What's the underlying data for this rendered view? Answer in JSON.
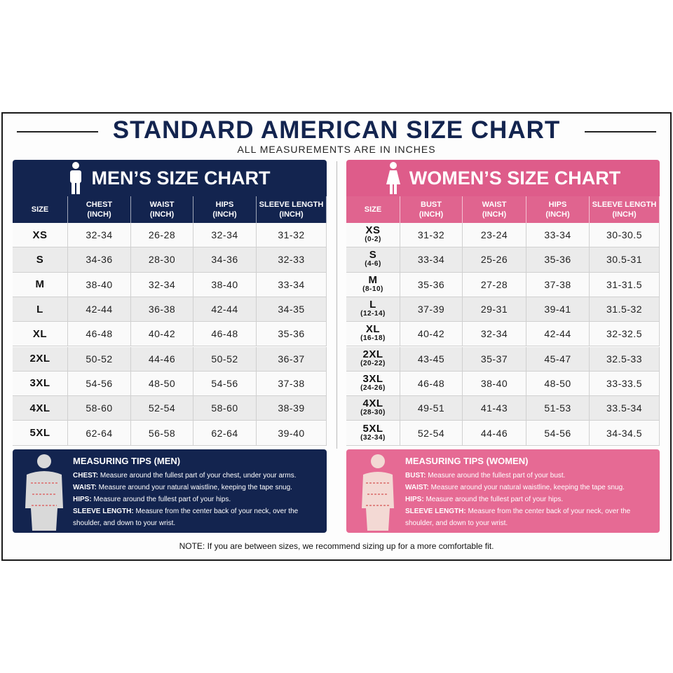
{
  "title": "STANDARD AMERICAN SIZE CHART",
  "subtitle": "ALL MEASUREMENTS ARE IN INCHES",
  "men": {
    "title": "MEN’S SIZE CHART",
    "columns": [
      {
        "name": "SIZE"
      },
      {
        "name": "CHEST",
        "unit": "(INCH)"
      },
      {
        "name": "WAIST",
        "unit": "(INCH)"
      },
      {
        "name": "HIPS",
        "unit": "(INCH)"
      },
      {
        "name": "SLEEVE LENGTH",
        "unit": "(INCH)"
      }
    ],
    "rows": [
      {
        "size": "XS",
        "values": [
          "32-34",
          "26-28",
          "32-34",
          "31-32"
        ]
      },
      {
        "size": "S",
        "values": [
          "34-36",
          "28-30",
          "34-36",
          "32-33"
        ]
      },
      {
        "size": "M",
        "values": [
          "38-40",
          "32-34",
          "38-40",
          "33-34"
        ]
      },
      {
        "size": "L",
        "values": [
          "42-44",
          "36-38",
          "42-44",
          "34-35"
        ]
      },
      {
        "size": "XL",
        "values": [
          "46-48",
          "40-42",
          "46-48",
          "35-36"
        ]
      },
      {
        "size": "2XL",
        "values": [
          "50-52",
          "44-46",
          "50-52",
          "36-37"
        ]
      },
      {
        "size": "3XL",
        "values": [
          "54-56",
          "48-50",
          "54-56",
          "37-38"
        ]
      },
      {
        "size": "4XL",
        "values": [
          "58-60",
          "52-54",
          "58-60",
          "38-39"
        ]
      },
      {
        "size": "5XL",
        "values": [
          "62-64",
          "56-58",
          "62-64",
          "39-40"
        ]
      }
    ],
    "tips": {
      "title": "MEASURING TIPS (MEN)",
      "items": [
        {
          "term": "CHEST:",
          "text": "Measure around the fullest part of your chest, under your arms."
        },
        {
          "term": "WAIST:",
          "text": "Measure around your natural waistline, keeping the tape snug."
        },
        {
          "term": "HIPS:",
          "text": "Measure around the fullest part of your hips."
        },
        {
          "term": "SLEEVE LENGTH:",
          "text": "Measure from the center back of your neck, over the shoulder, and down to your wrist."
        }
      ]
    }
  },
  "women": {
    "title": "WOMEN’S SIZE CHART",
    "columns": [
      {
        "name": "SIZE"
      },
      {
        "name": "BUST",
        "unit": "(INCH)"
      },
      {
        "name": "WAIST",
        "unit": "(INCH)"
      },
      {
        "name": "HIPS",
        "unit": "(INCH)"
      },
      {
        "name": "SLEEVE LENGTH",
        "unit": "(INCH)"
      }
    ],
    "rows": [
      {
        "size": "XS",
        "fit": "(0-2)",
        "values": [
          "31-32",
          "23-24",
          "33-34",
          "30-30.5"
        ]
      },
      {
        "size": "S",
        "fit": "(4-6)",
        "values": [
          "33-34",
          "25-26",
          "35-36",
          "30.5-31"
        ]
      },
      {
        "size": "M",
        "fit": "(8-10)",
        "values": [
          "35-36",
          "27-28",
          "37-38",
          "31-31.5"
        ]
      },
      {
        "size": "L",
        "fit": "(12-14)",
        "values": [
          "37-39",
          "29-31",
          "39-41",
          "31.5-32"
        ]
      },
      {
        "size": "XL",
        "fit": "(16-18)",
        "values": [
          "40-42",
          "32-34",
          "42-44",
          "32-32.5"
        ]
      },
      {
        "size": "2XL",
        "fit": "(20-22)",
        "values": [
          "43-45",
          "35-37",
          "45-47",
          "32.5-33"
        ]
      },
      {
        "size": "3XL",
        "fit": "(24-26)",
        "values": [
          "46-48",
          "38-40",
          "48-50",
          "33-33.5"
        ]
      },
      {
        "size": "4XL",
        "fit": "(28-30)",
        "values": [
          "49-51",
          "41-43",
          "51-53",
          "33.5-34"
        ]
      },
      {
        "size": "5XL",
        "fit": "(32-34)",
        "values": [
          "52-54",
          "44-46",
          "54-56",
          "34-34.5"
        ]
      }
    ],
    "tips": {
      "title": "MEASURING TIPS (WOMEN)",
      "items": [
        {
          "term": "BUST:",
          "text": "Measure around the fullest part of your bust."
        },
        {
          "term": "WAIST:",
          "text": "Measure around your natural waistline, keeping the tape snug."
        },
        {
          "term": "HIPS:",
          "text": "Measure around the fullest part of your hips."
        },
        {
          "term": "SLEEVE LENGTH:",
          "text": "Measure from the center back of your neck, over the shoulder, and down to your wrist."
        }
      ]
    }
  },
  "note": "NOTE: If you are between sizes, we recommend sizing up for a more comfortable fit."
}
